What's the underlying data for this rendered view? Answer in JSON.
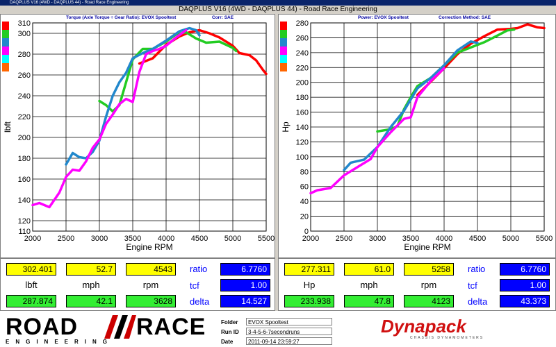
{
  "window": {
    "title": "DAQPLUS V16 (4WD - DAQPLUS 44) - Road Race Engineering"
  },
  "main_title": "DAQPLUS V16 (4WD - DAQPLUS 44) - Road Race Engineering",
  "swatch_colors": [
    "#ff0000",
    "#22cc22",
    "#2288cc",
    "#ff00ff",
    "#00ffff",
    "#ff6600"
  ],
  "left_panel": {
    "subtitle_main": "Torque (Axle Torque ÷ Gear Ratio): EVOX Spooltest",
    "subtitle_corr": "Corr: SAE"
  },
  "right_panel": {
    "subtitle_main": "Power: EVOX Spooltest",
    "subtitle_corr": "Correction Method: SAE"
  },
  "chart_data": [
    {
      "type": "line",
      "title": "Torque (Axle Torque ÷ Gear Ratio): EVOX Spooltest",
      "xlabel": "Engine RPM",
      "ylabel": "lbft",
      "xlim": [
        2000,
        5500
      ],
      "ylim": [
        110,
        310
      ],
      "xticks": [
        2000,
        2500,
        3000,
        3500,
        4000,
        4500,
        5000,
        5500
      ],
      "yticks": [
        110,
        120,
        140,
        160,
        180,
        200,
        220,
        240,
        260,
        280,
        300,
        310
      ],
      "grid": true,
      "series": [
        {
          "color": "#ff0000",
          "points": [
            [
              3600,
              271
            ],
            [
              3800,
              276
            ],
            [
              4000,
              289
            ],
            [
              4200,
              297
            ],
            [
              4350,
              301
            ],
            [
              4500,
              303
            ],
            [
              4650,
              300
            ],
            [
              4800,
              296
            ],
            [
              5000,
              288
            ],
            [
              5100,
              281
            ],
            [
              5250,
              279
            ],
            [
              5350,
              274
            ],
            [
              5450,
              265
            ],
            [
              5500,
              261
            ]
          ]
        },
        {
          "color": "#22cc22",
          "points": [
            [
              3000,
              235
            ],
            [
              3100,
              231
            ],
            [
              3200,
              225
            ],
            [
              3300,
              231
            ],
            [
              3400,
              253
            ],
            [
              3500,
              275
            ],
            [
              3650,
              285
            ],
            [
              3800,
              285
            ],
            [
              4000,
              292
            ],
            [
              4150,
              299
            ],
            [
              4300,
              301
            ],
            [
              4450,
              295
            ],
            [
              4600,
              291
            ],
            [
              4800,
              292
            ],
            [
              5000,
              286
            ],
            [
              5050,
              283
            ]
          ]
        },
        {
          "color": "#2288cc",
          "points": [
            [
              2500,
              174
            ],
            [
              2600,
              185
            ],
            [
              2700,
              181
            ],
            [
              2800,
              180
            ],
            [
              2900,
              186
            ],
            [
              3000,
              197
            ],
            [
              3100,
              220
            ],
            [
              3200,
              240
            ],
            [
              3300,
              253
            ],
            [
              3400,
              262
            ],
            [
              3500,
              276
            ],
            [
              3650,
              281
            ],
            [
              3800,
              285
            ],
            [
              4000,
              293
            ],
            [
              4200,
              302
            ],
            [
              4350,
              305
            ],
            [
              4450,
              303
            ],
            [
              4500,
              298
            ]
          ]
        },
        {
          "color": "#ff00ff",
          "points": [
            [
              2000,
              135
            ],
            [
              2100,
              137
            ],
            [
              2250,
              133
            ],
            [
              2400,
              147
            ],
            [
              2500,
              162
            ],
            [
              2600,
              169
            ],
            [
              2700,
              168
            ],
            [
              2800,
              177
            ],
            [
              2900,
              190
            ],
            [
              3000,
              198
            ],
            [
              3100,
              213
            ],
            [
              3200,
              222
            ],
            [
              3300,
              232
            ],
            [
              3400,
              237
            ],
            [
              3500,
              234
            ],
            [
              3600,
              263
            ],
            [
              3700,
              280
            ],
            [
              3800,
              283
            ],
            [
              3900,
              285
            ],
            [
              4000,
              288
            ],
            [
              4150,
              296
            ],
            [
              4300,
              303
            ]
          ]
        }
      ]
    },
    {
      "type": "line",
      "title": "Power: EVOX Spooltest",
      "xlabel": "Engine RPM",
      "ylabel": "Hp",
      "xlim": [
        2000,
        5500
      ],
      "ylim": [
        0,
        280
      ],
      "xticks": [
        2000,
        2500,
        3000,
        3500,
        4000,
        4500,
        5000,
        5500
      ],
      "yticks": [
        0,
        20,
        40,
        60,
        80,
        100,
        120,
        140,
        160,
        180,
        200,
        220,
        240,
        260,
        280
      ],
      "grid": true,
      "series": [
        {
          "color": "#ff0000",
          "points": [
            [
              3600,
              183
            ],
            [
              3800,
              201
            ],
            [
              4000,
              219
            ],
            [
              4200,
              238
            ],
            [
              4400,
              252
            ],
            [
              4600,
              262
            ],
            [
              4800,
              271
            ],
            [
              5000,
              272
            ],
            [
              5100,
              273
            ],
            [
              5250,
              278
            ],
            [
              5400,
              274
            ],
            [
              5500,
              273
            ]
          ]
        },
        {
          "color": "#22cc22",
          "points": [
            [
              3000,
              134
            ],
            [
              3200,
              137
            ],
            [
              3300,
              141
            ],
            [
              3400,
              164
            ],
            [
              3500,
              180
            ],
            [
              3600,
              195
            ],
            [
              3800,
              206
            ],
            [
              4000,
              223
            ],
            [
              4200,
              240
            ],
            [
              4400,
              247
            ],
            [
              4600,
              254
            ],
            [
              4800,
              263
            ],
            [
              4950,
              270
            ],
            [
              5050,
              271
            ]
          ]
        },
        {
          "color": "#2288cc",
          "points": [
            [
              2500,
              82
            ],
            [
              2600,
              92
            ],
            [
              2800,
              96
            ],
            [
              3000,
              113
            ],
            [
              3200,
              140
            ],
            [
              3400,
              162
            ],
            [
              3600,
              192
            ],
            [
              3800,
              206
            ],
            [
              4000,
              223
            ],
            [
              4200,
              243
            ],
            [
              4400,
              255
            ],
            [
              4500,
              253
            ]
          ]
        },
        {
          "color": "#ff00ff",
          "points": [
            [
              2000,
              51
            ],
            [
              2100,
              55
            ],
            [
              2300,
              58
            ],
            [
              2500,
              75
            ],
            [
              2700,
              86
            ],
            [
              2900,
              97
            ],
            [
              3000,
              113
            ],
            [
              3200,
              133
            ],
            [
              3400,
              151
            ],
            [
              3500,
              153
            ],
            [
              3600,
              180
            ],
            [
              3800,
              202
            ],
            [
              4000,
              219
            ]
          ]
        }
      ]
    }
  ],
  "readouts": {
    "left": {
      "top_values": [
        "302.401",
        "52.7",
        "4543"
      ],
      "units": [
        "lbft",
        "mph",
        "rpm"
      ],
      "bottom_values": [
        "287.874",
        "42.1",
        "3628"
      ],
      "side_labels": [
        "ratio",
        "tcf",
        "delta"
      ],
      "side_values": [
        "6.7760",
        "1.00",
        "14.527"
      ]
    },
    "right": {
      "top_values": [
        "277.311",
        "61.0",
        "5258"
      ],
      "units": [
        "Hp",
        "mph",
        "rpm"
      ],
      "bottom_values": [
        "233.938",
        "47.8",
        "4123"
      ],
      "side_labels": [
        "ratio",
        "tcf",
        "delta"
      ],
      "side_values": [
        "6.7760",
        "1.00",
        "43.373"
      ]
    }
  },
  "footer": {
    "logo_road": "ROAD",
    "logo_race": "RACE",
    "logo_sub": "ENGINEERING",
    "folder_label": "Folder",
    "folder_value": "EVOX Spooltest",
    "runid_label": "Run ID",
    "runid_value": "3-4-5-6-7secondruns",
    "date_label": "Date",
    "date_value": "2011-09-14 23:59:27",
    "dynapack": "Dynapack",
    "dynapack_sub": "CHASSIS DYNAMOMETERS"
  }
}
